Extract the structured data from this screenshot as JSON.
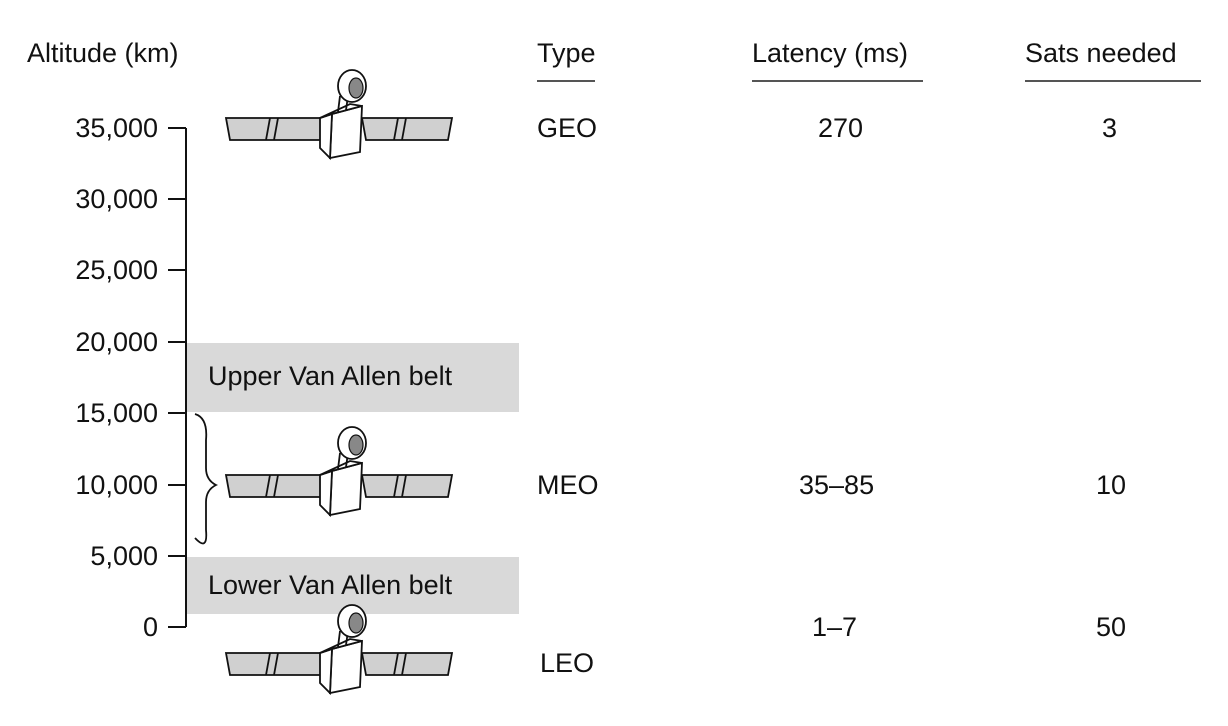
{
  "axis": {
    "title": "Altitude (km)",
    "ticks": [
      {
        "value": 35000,
        "label": "35,000"
      },
      {
        "value": 30000,
        "label": "30,000"
      },
      {
        "value": 25000,
        "label": "25,000"
      },
      {
        "value": 20000,
        "label": "20,000"
      },
      {
        "value": 15000,
        "label": "15,000"
      },
      {
        "value": 10000,
        "label": "10,000"
      },
      {
        "value": 5000,
        "label": "5,000"
      },
      {
        "value": 0,
        "label": "0"
      }
    ]
  },
  "headers": {
    "type": "Type",
    "latency": "Latency (ms)",
    "sats": "Sats needed"
  },
  "belts": {
    "upper": "Upper Van Allen belt",
    "lower": "Lower Van Allen belt"
  },
  "orbits": [
    {
      "type": "GEO",
      "latency": "270",
      "sats": "3"
    },
    {
      "type": "MEO",
      "latency": "35–85",
      "sats": "10"
    },
    {
      "type": "LEO",
      "latency": "1–7",
      "sats": "50"
    }
  ],
  "icons": [
    "satellite-icon",
    "satellite-icon",
    "satellite-icon"
  ]
}
